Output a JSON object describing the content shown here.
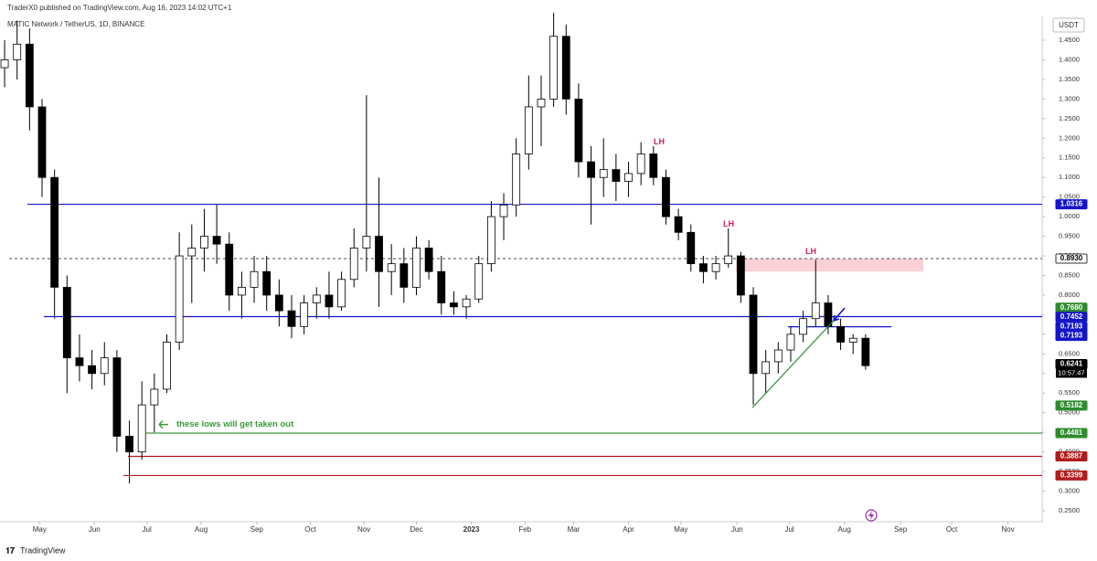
{
  "header": {
    "title": "TraderX0 published on TradingView.com, Aug 16, 2023 14:02 UTC+1",
    "footer": "TradingView"
  },
  "chart_data": {
    "type": "candlestick",
    "title": "MATIC Network / TetherUS, 1D, BINANCE",
    "currency": "USDT",
    "up_color": "#ffffff",
    "down_color": "#000000",
    "grid": false,
    "open": [
      1.38,
      1.4,
      1.44,
      1.28,
      1.1,
      0.82,
      0.64,
      0.62,
      0.6,
      0.64,
      0.44,
      0.4,
      0.52,
      0.56,
      0.68,
      0.9,
      0.92,
      0.95,
      0.93,
      0.8,
      0.82,
      0.86,
      0.8,
      0.76,
      0.72,
      0.78,
      0.8,
      0.77,
      0.84,
      0.92,
      0.95,
      0.86,
      0.88,
      0.82,
      0.92,
      0.86,
      0.78,
      0.77,
      0.79,
      0.88,
      1.0,
      1.03,
      1.16,
      1.28,
      1.3,
      1.46,
      1.3,
      1.14,
      1.1,
      1.12,
      1.09,
      1.11,
      1.16,
      1.1,
      1.0,
      0.96,
      0.88,
      0.86,
      0.88,
      0.9,
      0.8,
      0.6,
      0.63,
      0.66,
      0.7,
      0.74,
      0.78,
      0.72,
      0.68,
      0.69
    ],
    "high": [
      1.45,
      1.5,
      1.48,
      1.3,
      1.12,
      0.85,
      0.7,
      0.66,
      0.68,
      0.66,
      0.48,
      0.58,
      0.6,
      0.7,
      0.96,
      0.98,
      1.02,
      1.03,
      0.96,
      0.86,
      0.9,
      0.9,
      0.84,
      0.8,
      0.8,
      0.82,
      0.86,
      0.86,
      0.97,
      1.31,
      1.1,
      0.93,
      0.92,
      0.95,
      0.94,
      0.9,
      0.81,
      0.8,
      0.9,
      1.04,
      1.06,
      1.2,
      1.36,
      1.36,
      1.52,
      1.49,
      1.34,
      1.18,
      1.2,
      1.16,
      1.14,
      1.19,
      1.18,
      1.12,
      1.02,
      0.98,
      0.9,
      0.9,
      0.97,
      0.91,
      0.82,
      0.66,
      0.68,
      0.72,
      0.76,
      0.89,
      0.8,
      0.74,
      0.7,
      0.7
    ],
    "low": [
      1.33,
      1.35,
      1.22,
      1.05,
      0.74,
      0.55,
      0.58,
      0.56,
      0.57,
      0.4,
      0.32,
      0.38,
      0.45,
      0.55,
      0.66,
      0.78,
      0.86,
      0.88,
      0.76,
      0.74,
      0.78,
      0.76,
      0.72,
      0.69,
      0.7,
      0.74,
      0.74,
      0.76,
      0.82,
      0.86,
      0.77,
      0.8,
      0.78,
      0.8,
      0.84,
      0.75,
      0.75,
      0.74,
      0.78,
      0.86,
      0.94,
      1.0,
      1.12,
      1.18,
      1.28,
      1.26,
      1.1,
      0.98,
      1.05,
      1.04,
      1.05,
      1.08,
      1.08,
      0.98,
      0.94,
      0.86,
      0.83,
      0.84,
      0.87,
      0.78,
      0.52,
      0.55,
      0.6,
      0.63,
      0.68,
      0.72,
      0.7,
      0.66,
      0.65,
      0.61
    ],
    "close": [
      1.4,
      1.44,
      1.28,
      1.1,
      0.82,
      0.64,
      0.62,
      0.6,
      0.64,
      0.44,
      0.4,
      0.52,
      0.56,
      0.68,
      0.9,
      0.92,
      0.95,
      0.93,
      0.8,
      0.82,
      0.86,
      0.8,
      0.76,
      0.72,
      0.78,
      0.8,
      0.77,
      0.84,
      0.92,
      0.95,
      0.86,
      0.88,
      0.82,
      0.92,
      0.86,
      0.78,
      0.77,
      0.79,
      0.88,
      1.0,
      1.03,
      1.16,
      1.28,
      1.3,
      1.46,
      1.3,
      1.14,
      1.1,
      1.12,
      1.09,
      1.11,
      1.16,
      1.1,
      1.0,
      0.96,
      0.88,
      0.86,
      0.88,
      0.9,
      0.8,
      0.6,
      0.63,
      0.66,
      0.7,
      0.74,
      0.78,
      0.72,
      0.68,
      0.69,
      0.62
    ],
    "xlim": [
      -0.37,
      83.15
    ],
    "xticks": [
      {
        "value": 2.8,
        "label": "May"
      },
      {
        "value": 7.2,
        "label": "Jun"
      },
      {
        "value": 11.4,
        "label": "Jul"
      },
      {
        "value": 15.75,
        "label": "Aug"
      },
      {
        "value": 20.2,
        "label": "Sep"
      },
      {
        "value": 24.5,
        "label": "Oct"
      },
      {
        "value": 28.8,
        "label": "Nov"
      },
      {
        "value": 33.0,
        "label": "Dec"
      },
      {
        "value": 37.4,
        "label": "2023"
      },
      {
        "value": 41.7,
        "label": "Feb"
      },
      {
        "value": 45.6,
        "label": "Mar"
      },
      {
        "value": 50.0,
        "label": "Apr"
      },
      {
        "value": 54.2,
        "label": "May"
      },
      {
        "value": 58.7,
        "label": "Jun"
      },
      {
        "value": 62.9,
        "label": "Jul"
      },
      {
        "value": 67.3,
        "label": "Aug"
      },
      {
        "value": 71.8,
        "label": "Sep"
      },
      {
        "value": 75.9,
        "label": "Oct"
      },
      {
        "value": 80.4,
        "label": "Nov"
      }
    ],
    "ylim": [
      0.2244,
      1.5106
    ],
    "yticks": [
      {
        "value": 1.45,
        "label": "1.4500"
      },
      {
        "value": 1.4,
        "label": "1.4000"
      },
      {
        "value": 1.35,
        "label": "1.3500"
      },
      {
        "value": 1.3,
        "label": "1.3000"
      },
      {
        "value": 1.25,
        "label": "1.2500"
      },
      {
        "value": 1.2,
        "label": "1.2000"
      },
      {
        "value": 1.15,
        "label": "1.1500"
      },
      {
        "value": 1.1,
        "label": "1.1000"
      },
      {
        "value": 1.05,
        "label": "1.0500"
      },
      {
        "value": 1.0,
        "label": "1.0000"
      },
      {
        "value": 0.95,
        "label": "0.9500"
      },
      {
        "value": 0.9,
        "label": "0.9000"
      },
      {
        "value": 0.85,
        "label": "0.8500"
      },
      {
        "value": 0.8,
        "label": "0.8000"
      },
      {
        "value": 0.75,
        "label": "0.7500"
      },
      {
        "value": 0.7,
        "label": "0.7000"
      },
      {
        "value": 0.65,
        "label": "0.6500"
      },
      {
        "value": 0.6,
        "label": "0.6000"
      },
      {
        "value": 0.55,
        "label": "0.5500"
      },
      {
        "value": 0.5,
        "label": "0.5000"
      },
      {
        "value": 0.45,
        "label": "0.4500"
      },
      {
        "value": 0.4,
        "label": "0.4000"
      },
      {
        "value": 0.35,
        "label": "0.3500"
      },
      {
        "value": 0.3,
        "label": "0.3000"
      },
      {
        "value": 0.25,
        "label": "0.2500"
      }
    ],
    "levels": [
      {
        "value": 1.0316,
        "color": "#1414c8"
      },
      {
        "value": 0.893,
        "color": "#333333",
        "dashed": true
      },
      {
        "value": 0.7452,
        "color": "#1414c8"
      },
      {
        "value": 0.7193,
        "color": "#1414c8"
      },
      {
        "value": 0.4481,
        "color": "#3a9a3a"
      },
      {
        "value": 0.3887,
        "color": "#b01c1c"
      },
      {
        "value": 0.3399,
        "color": "#b01c1c"
      }
    ],
    "price_labels": [
      {
        "value": 1.0316,
        "label": "1.0316",
        "color": "#1414c8"
      },
      {
        "value": 0.893,
        "label": "0.8930",
        "color": "#ffffff"
      },
      {
        "value": 0.768,
        "label": "0.7680",
        "color": "#2e8b2e"
      },
      {
        "value": 0.7452,
        "label": "0.7452",
        "color": "#1414c8"
      },
      {
        "value": 0.7193,
        "label": "0.7193",
        "color": "#1414c8"
      },
      {
        "value": 0.7193,
        "label": "0.7193",
        "color": "#1414c8"
      },
      {
        "value": 0.6241,
        "label": "0.6241",
        "color": "#000000"
      },
      {
        "value": 0.5182,
        "label": "0.5182",
        "color": "#2e8b2e"
      },
      {
        "value": 0.4481,
        "label": "0.4481",
        "color": "#2e8b2e"
      },
      {
        "value": 0.3887,
        "label": "0.3887",
        "color": "#b01c1c"
      },
      {
        "value": 0.3399,
        "label": "0.3399",
        "color": "#b01c1c"
      }
    ],
    "countdown": "10:57:47",
    "zone": [
      0.86,
      0.893
    ],
    "trendline": [
      0.513,
      0.75
    ],
    "annotations": [
      {
        "text": "LH",
        "value": 1.19
      },
      {
        "text": "LH",
        "value": 0.98
      },
      {
        "text": "LH",
        "value": 0.91
      },
      {
        "text": "these lows will get taken out",
        "value": 0.47
      }
    ]
  }
}
